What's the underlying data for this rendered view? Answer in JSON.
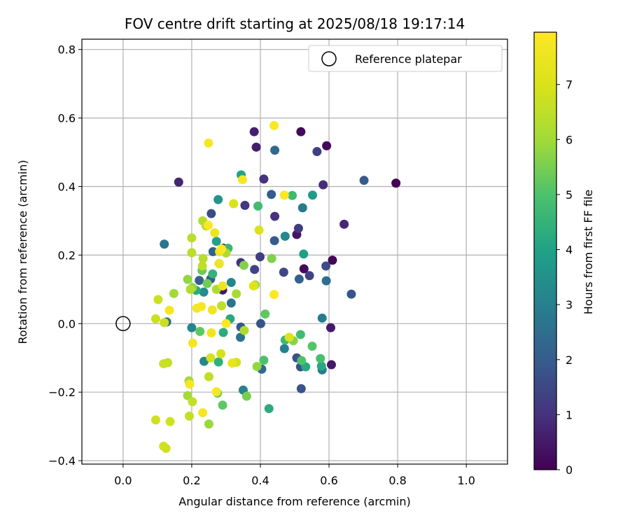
{
  "chart_data": {
    "type": "scatter",
    "title": "FOV centre drift starting at 2025/08/18 19:17:14",
    "xlabel": "Angular distance from reference (arcmin)",
    "ylabel": "Rotation from reference (arcmin)",
    "xlim": [
      -0.12,
      1.12
    ],
    "ylim": [
      -0.41,
      0.83
    ],
    "xticks": [
      0.0,
      0.2,
      0.4,
      0.6,
      0.8,
      1.0
    ],
    "xtick_labels": [
      "0.0",
      "0.2",
      "0.4",
      "0.6",
      "0.8",
      "1.0"
    ],
    "yticks": [
      -0.4,
      -0.2,
      0.0,
      0.2,
      0.4,
      0.6,
      0.8
    ],
    "ytick_labels": [
      "−0.4",
      "−0.2",
      "0.0",
      "0.2",
      "0.4",
      "0.6",
      "0.8"
    ],
    "grid": true,
    "legend": {
      "position": "upper-right",
      "entries": [
        "Reference platepar"
      ]
    },
    "reference_point": {
      "x": 0.0,
      "y": 0.0
    },
    "colorbar": {
      "label": "Hours from first FF file",
      "range": [
        0,
        7.95
      ],
      "ticks": [
        0,
        1,
        2,
        3,
        4,
        5,
        6,
        7
      ],
      "tick_labels": [
        "0",
        "1",
        "2",
        "3",
        "4",
        "5",
        "6",
        "7"
      ],
      "colormap": "viridis"
    },
    "points": [
      {
        "x": 0.795,
        "y": 0.41,
        "h": 0.0
      },
      {
        "x": 0.593,
        "y": 0.519,
        "h": 0.1
      },
      {
        "x": 0.61,
        "y": 0.185,
        "h": 0.1
      },
      {
        "x": 0.518,
        "y": 0.56,
        "h": 0.2
      },
      {
        "x": 0.527,
        "y": 0.16,
        "h": 0.2
      },
      {
        "x": 0.506,
        "y": 0.26,
        "h": 0.4
      },
      {
        "x": 0.605,
        "y": -0.012,
        "h": 0.5
      },
      {
        "x": 0.607,
        "y": -0.12,
        "h": 0.5
      },
      {
        "x": 0.29,
        "y": 0.098,
        "h": 0.5
      },
      {
        "x": 0.382,
        "y": 0.56,
        "h": 0.6
      },
      {
        "x": 0.388,
        "y": 0.515,
        "h": 0.6
      },
      {
        "x": 0.162,
        "y": 0.413,
        "h": 0.7
      },
      {
        "x": 0.644,
        "y": 0.29,
        "h": 0.8
      },
      {
        "x": 0.583,
        "y": 0.405,
        "h": 0.9
      },
      {
        "x": 0.41,
        "y": 0.422,
        "h": 1.0
      },
      {
        "x": 0.442,
        "y": 0.313,
        "h": 1.0
      },
      {
        "x": 0.292,
        "y": 0.22,
        "h": 0.9
      },
      {
        "x": 0.355,
        "y": 0.345,
        "h": 1.1
      },
      {
        "x": 0.343,
        "y": 0.178,
        "h": 1.0
      },
      {
        "x": 0.511,
        "y": 0.278,
        "h": 1.2
      },
      {
        "x": 0.565,
        "y": 0.502,
        "h": 1.3
      },
      {
        "x": 0.399,
        "y": 0.195,
        "h": 1.3
      },
      {
        "x": 0.543,
        "y": 0.14,
        "h": 1.4
      },
      {
        "x": 0.383,
        "y": 0.158,
        "h": 1.4
      },
      {
        "x": 0.468,
        "y": 0.15,
        "h": 1.5
      },
      {
        "x": 0.591,
        "y": 0.168,
        "h": 1.6
      },
      {
        "x": 0.257,
        "y": 0.321,
        "h": 1.6
      },
      {
        "x": 0.506,
        "y": -0.1,
        "h": 1.7
      },
      {
        "x": 0.517,
        "y": -0.126,
        "h": 1.7
      },
      {
        "x": 0.519,
        "y": -0.19,
        "h": 1.8
      },
      {
        "x": 0.665,
        "y": 0.086,
        "h": 1.8
      },
      {
        "x": 0.702,
        "y": 0.418,
        "h": 2.0
      },
      {
        "x": 0.441,
        "y": 0.242,
        "h": 2.0
      },
      {
        "x": 0.432,
        "y": 0.377,
        "h": 2.0
      },
      {
        "x": 0.401,
        "y": 0.0,
        "h": 1.8
      },
      {
        "x": 0.343,
        "y": -0.01,
        "h": 1.9
      },
      {
        "x": 0.513,
        "y": 0.13,
        "h": 2.1
      },
      {
        "x": 0.262,
        "y": 0.21,
        "h": 2.1
      },
      {
        "x": 0.255,
        "y": 0.13,
        "h": 2.0
      },
      {
        "x": 0.222,
        "y": 0.126,
        "h": 2.1
      },
      {
        "x": 0.442,
        "y": 0.506,
        "h": 2.4
      },
      {
        "x": 0.592,
        "y": 0.125,
        "h": 2.5
      },
      {
        "x": 0.404,
        "y": -0.133,
        "h": 2.4
      },
      {
        "x": 0.342,
        "y": -0.04,
        "h": 2.6
      },
      {
        "x": 0.315,
        "y": 0.06,
        "h": 2.6
      },
      {
        "x": 0.12,
        "y": 0.232,
        "h": 2.7
      },
      {
        "x": 0.127,
        "y": 0.005,
        "h": 2.6
      },
      {
        "x": 0.523,
        "y": 0.338,
        "h": 2.8
      },
      {
        "x": 0.58,
        "y": -0.135,
        "h": 2.8
      },
      {
        "x": 0.58,
        "y": 0.016,
        "h": 2.9
      },
      {
        "x": 0.47,
        "y": -0.073,
        "h": 3.0
      },
      {
        "x": 0.35,
        "y": -0.194,
        "h": 3.1
      },
      {
        "x": 0.236,
        "y": -0.11,
        "h": 3.2
      },
      {
        "x": 0.2,
        "y": -0.012,
        "h": 3.2
      },
      {
        "x": 0.315,
        "y": 0.12,
        "h": 3.2
      },
      {
        "x": 0.472,
        "y": 0.255,
        "h": 3.3
      },
      {
        "x": 0.235,
        "y": 0.092,
        "h": 3.4
      },
      {
        "x": 0.277,
        "y": 0.362,
        "h": 3.6
      },
      {
        "x": 0.28,
        "y": 0.175,
        "h": 3.6
      },
      {
        "x": 0.552,
        "y": 0.375,
        "h": 3.8
      },
      {
        "x": 0.526,
        "y": 0.203,
        "h": 3.9
      },
      {
        "x": 0.344,
        "y": 0.434,
        "h": 4.0
      },
      {
        "x": 0.272,
        "y": 0.24,
        "h": 4.0
      },
      {
        "x": 0.532,
        "y": -0.126,
        "h": 4.2
      },
      {
        "x": 0.578,
        "y": -0.124,
        "h": 4.2
      },
      {
        "x": 0.425,
        "y": -0.248,
        "h": 4.3
      },
      {
        "x": 0.312,
        "y": 0.014,
        "h": 4.2
      },
      {
        "x": 0.292,
        "y": -0.026,
        "h": 4.3
      },
      {
        "x": 0.278,
        "y": -0.112,
        "h": 4.4
      },
      {
        "x": 0.213,
        "y": 0.097,
        "h": 4.3
      },
      {
        "x": 0.261,
        "y": 0.145,
        "h": 4.5
      },
      {
        "x": 0.306,
        "y": 0.22,
        "h": 4.6
      },
      {
        "x": 0.472,
        "y": -0.048,
        "h": 4.7
      },
      {
        "x": 0.493,
        "y": 0.374,
        "h": 4.7
      },
      {
        "x": 0.393,
        "y": 0.343,
        "h": 4.8
      },
      {
        "x": 0.517,
        "y": -0.032,
        "h": 4.8
      },
      {
        "x": 0.575,
        "y": -0.102,
        "h": 4.9
      },
      {
        "x": 0.52,
        "y": -0.108,
        "h": 5.0
      },
      {
        "x": 0.551,
        "y": -0.066,
        "h": 5.1
      },
      {
        "x": 0.41,
        "y": -0.107,
        "h": 5.0
      },
      {
        "x": 0.414,
        "y": 0.028,
        "h": 5.2
      },
      {
        "x": 0.29,
        "y": -0.238,
        "h": 5.2
      },
      {
        "x": 0.275,
        "y": -0.203,
        "h": 5.3
      },
      {
        "x": 0.224,
        "y": -0.023,
        "h": 5.2
      },
      {
        "x": 0.23,
        "y": 0.155,
        "h": 5.3
      },
      {
        "x": 0.245,
        "y": 0.117,
        "h": 5.4
      },
      {
        "x": 0.36,
        "y": -0.212,
        "h": 5.5
      },
      {
        "x": 0.352,
        "y": 0.17,
        "h": 5.6
      },
      {
        "x": 0.433,
        "y": 0.19,
        "h": 5.6
      },
      {
        "x": 0.496,
        "y": -0.05,
        "h": 5.7
      },
      {
        "x": 0.39,
        "y": -0.125,
        "h": 5.8
      },
      {
        "x": 0.188,
        "y": 0.129,
        "h": 5.8
      },
      {
        "x": 0.202,
        "y": 0.105,
        "h": 5.8
      },
      {
        "x": 0.25,
        "y": -0.293,
        "h": 5.9
      },
      {
        "x": 0.192,
        "y": -0.167,
        "h": 6.0
      },
      {
        "x": 0.148,
        "y": 0.088,
        "h": 6.0
      },
      {
        "x": 0.188,
        "y": -0.21,
        "h": 6.0
      },
      {
        "x": 0.33,
        "y": 0.087,
        "h": 6.1
      },
      {
        "x": 0.385,
        "y": 0.113,
        "h": 6.1
      },
      {
        "x": 0.353,
        "y": -0.02,
        "h": 6.2
      },
      {
        "x": 0.3,
        "y": 0.206,
        "h": 6.2
      },
      {
        "x": 0.272,
        "y": 0.1,
        "h": 6.2
      },
      {
        "x": 0.232,
        "y": 0.3,
        "h": 6.3
      },
      {
        "x": 0.196,
        "y": 0.1,
        "h": 6.3
      },
      {
        "x": 0.242,
        "y": 0.285,
        "h": 6.3
      },
      {
        "x": 0.233,
        "y": 0.19,
        "h": 6.4
      },
      {
        "x": 0.2,
        "y": 0.25,
        "h": 6.4
      },
      {
        "x": 0.2,
        "y": 0.207,
        "h": 6.4
      },
      {
        "x": 0.25,
        "y": -0.155,
        "h": 6.5
      },
      {
        "x": 0.231,
        "y": 0.168,
        "h": 6.5
      },
      {
        "x": 0.287,
        "y": 0.052,
        "h": 6.5
      },
      {
        "x": 0.193,
        "y": -0.27,
        "h": 6.6
      },
      {
        "x": 0.202,
        "y": -0.228,
        "h": 6.6
      },
      {
        "x": 0.13,
        "y": -0.114,
        "h": 6.6
      },
      {
        "x": 0.118,
        "y": -0.117,
        "h": 6.7
      },
      {
        "x": 0.12,
        "y": 0.003,
        "h": 6.7
      },
      {
        "x": 0.095,
        "y": 0.014,
        "h": 6.7
      },
      {
        "x": 0.102,
        "y": 0.07,
        "h": 6.7
      },
      {
        "x": 0.095,
        "y": -0.281,
        "h": 6.8
      },
      {
        "x": 0.118,
        "y": -0.358,
        "h": 6.8
      },
      {
        "x": 0.125,
        "y": -0.364,
        "h": 6.8
      },
      {
        "x": 0.137,
        "y": -0.286,
        "h": 6.8
      },
      {
        "x": 0.255,
        "y": -0.1,
        "h": 6.9
      },
      {
        "x": 0.285,
        "y": -0.088,
        "h": 6.9
      },
      {
        "x": 0.33,
        "y": -0.113,
        "h": 6.9
      },
      {
        "x": 0.322,
        "y": 0.35,
        "h": 7.0
      },
      {
        "x": 0.396,
        "y": 0.273,
        "h": 7.1
      },
      {
        "x": 0.484,
        "y": -0.04,
        "h": 7.1
      },
      {
        "x": 0.38,
        "y": 0.11,
        "h": 7.2
      },
      {
        "x": 0.318,
        "y": -0.115,
        "h": 7.4
      },
      {
        "x": 0.29,
        "y": 0.11,
        "h": 7.5
      },
      {
        "x": 0.281,
        "y": 0.21,
        "h": 7.5
      },
      {
        "x": 0.267,
        "y": 0.265,
        "h": 7.5
      },
      {
        "x": 0.257,
        "y": -0.027,
        "h": 7.6
      },
      {
        "x": 0.26,
        "y": 0.04,
        "h": 7.6
      },
      {
        "x": 0.28,
        "y": 0.175,
        "h": 7.6
      },
      {
        "x": 0.228,
        "y": 0.05,
        "h": 7.7
      },
      {
        "x": 0.215,
        "y": 0.045,
        "h": 7.7
      },
      {
        "x": 0.135,
        "y": 0.039,
        "h": 7.7
      },
      {
        "x": 0.203,
        "y": -0.057,
        "h": 7.7
      },
      {
        "x": 0.194,
        "y": -0.177,
        "h": 7.8
      },
      {
        "x": 0.232,
        "y": -0.26,
        "h": 7.8
      },
      {
        "x": 0.272,
        "y": -0.199,
        "h": 7.8
      },
      {
        "x": 0.249,
        "y": 0.527,
        "h": 7.8
      },
      {
        "x": 0.348,
        "y": 0.42,
        "h": 7.8
      },
      {
        "x": 0.44,
        "y": 0.578,
        "h": 7.9
      },
      {
        "x": 0.44,
        "y": 0.085,
        "h": 7.9
      },
      {
        "x": 0.47,
        "y": 0.375,
        "h": 7.9
      },
      {
        "x": 0.3,
        "y": 0.0,
        "h": 7.9
      },
      {
        "x": 0.248,
        "y": 0.287,
        "h": 7.9
      },
      {
        "x": 0.287,
        "y": 0.218,
        "h": 7.95
      }
    ]
  }
}
